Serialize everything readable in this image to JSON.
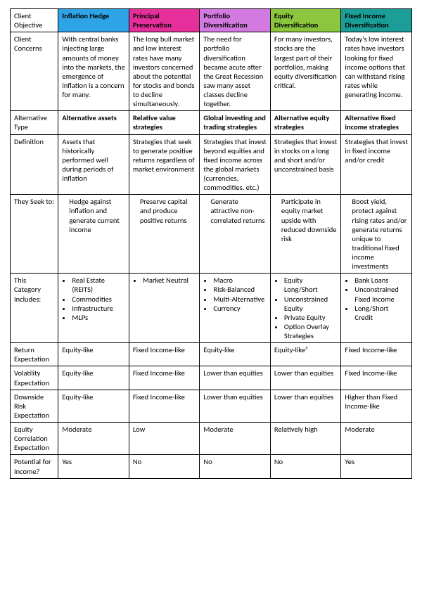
{
  "header": {
    "row_label": "Client Objective",
    "cols": [
      {
        "label": "Inflation Hedge",
        "bg": "#2ea3e6"
      },
      {
        "label": "Principal Preservation",
        "bg": "#e52f9a"
      },
      {
        "label": "Portfolio Diversification",
        "bg": "#d37ae0"
      },
      {
        "label": "Equity Diversification",
        "bg": "#8cc63f"
      },
      {
        "label": "Fixed Income Diversification",
        "bg": "#1b9e97"
      }
    ]
  },
  "rows": {
    "concerns": {
      "label": "Client Concerns",
      "c": [
        "With central banks injecting large amounts of money into the markets, the emergence of inflation is a concern for many.",
        "The long bull market and low interest rates have many investors concerned about the potential for stocks and bonds to decline simultaneously.",
        "The need for portfolio diversification became acute after the Great Recession saw many asset classes decline together.",
        "For many investors, stocks are the largest part of their portfolios, making equity diversification critical.",
        "Today's low interest rates have investors looking for fixed income options that can withstand rising rates while generating income."
      ]
    },
    "alt_type": {
      "label": "Alternative Type",
      "c": [
        "Alternative assets",
        "Relative value strategies",
        "Global investing and trading strategies",
        "Alternative equity strategies",
        "Alternative fixed income strategies"
      ]
    },
    "definition": {
      "label": "Definition",
      "c": [
        "Assets that historically performed well during periods of inflation",
        "Strategies that seek to generate positive returns regardless of market environment",
        "Strategies that invest beyond equities and fixed income across the global markets (currencies, commodities, etc.)",
        "Strategies that invest in stocks on a long and short and/or unconstrained basis",
        "Strategies that invest in fixed income and/or credit"
      ]
    },
    "seek": {
      "label": "They Seek to:",
      "c": [
        "Hedge against inflation and generate current income",
        "Preserve capital and produce positive returns",
        "Generate attractive non-correlated returns",
        "Participate in equity market upside with reduced downside risk",
        "Boost yield, protect against rising rates and/or generate returns unique to traditional fixed income investments"
      ]
    },
    "includes": {
      "label": "This Category Includes:",
      "c": [
        [
          "Real Estate (REITS)",
          "Commodities",
          "Infrastructure",
          "MLPs"
        ],
        [
          "Market Neutral"
        ],
        [
          "Macro",
          "Risk-Balanced",
          "Multi-Alternative",
          "Currency"
        ],
        [
          "Equity Long/Short",
          "Unconstrained Equity",
          "Private Equity",
          "Option Overlay Strategies"
        ],
        [
          "Bank Loans",
          "Unconstrained Fixed Income",
          "Long/Short Credit"
        ]
      ]
    },
    "return": {
      "label": "Return Expectation",
      "c": [
        "Equity-like",
        "Fixed Income-like",
        "Equity-like",
        "Equity-like³",
        "Fixed Income-like"
      ]
    },
    "vol": {
      "label": "Volatility Expectation",
      "c": [
        "Equity-like",
        "Fixed Income-like",
        "Lower than equities",
        "Lower than equities",
        "Fixed Income-like"
      ]
    },
    "downside": {
      "label": "Downside Risk Expectation",
      "c": [
        "Equity-like",
        "Fixed Income-like",
        "Lower than equities",
        "Lower than equities",
        "Higher than Fixed Income-like"
      ]
    },
    "corr": {
      "label": "Equity Correlation Expectation",
      "c": [
        "Moderate",
        "Low",
        "Moderate",
        "Relatively high",
        "Moderate"
      ]
    },
    "income": {
      "label": "Potential for Income?",
      "c": [
        "Yes",
        "No",
        "No",
        "No",
        "Yes"
      ]
    }
  }
}
